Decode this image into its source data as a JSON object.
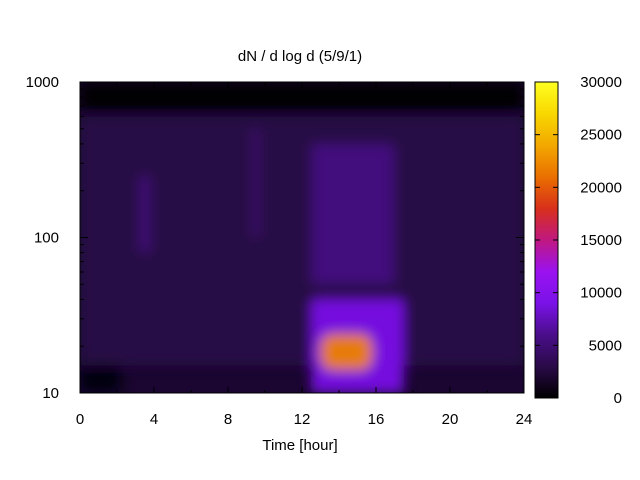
{
  "chart_data": {
    "type": "heatmap",
    "title": "dN / d log d (5/9/1)",
    "xlabel": "Time [hour]",
    "ylabel": "",
    "x_ticks": [
      "0",
      "4",
      "8",
      "12",
      "16",
      "20",
      "24"
    ],
    "x_tick_values": [
      0,
      4,
      8,
      12,
      16,
      20,
      24
    ],
    "y_ticks": [
      "10",
      "100",
      "1000"
    ],
    "y_tick_values": [
      10,
      100,
      1000
    ],
    "xlim": [
      0,
      24
    ],
    "ylim": [
      10,
      1000
    ],
    "y_scale": "log",
    "grid": false,
    "colorbar": {
      "range": [
        0,
        30000
      ],
      "ticks": [
        "0",
        "5000",
        "10000",
        "15000",
        "20000",
        "25000",
        "30000"
      ],
      "tick_values": [
        0,
        5000,
        10000,
        15000,
        20000,
        25000,
        30000
      ],
      "palette": [
        "#000000",
        "#2a0a48",
        "#4a0e8a",
        "#7a12e8",
        "#9a12f0",
        "#c01880",
        "#d8301a",
        "#ea7000",
        "#f2a800",
        "#f8d800",
        "#ffff20"
      ]
    },
    "features": [
      {
        "x": [
          0,
          24
        ],
        "y": [
          650,
          1000
        ],
        "value": 0
      },
      {
        "x": [
          0,
          2.2
        ],
        "y": [
          10,
          18
        ],
        "value": 300
      },
      {
        "x": [
          0,
          24
        ],
        "y": [
          15,
          600
        ],
        "value": 3000
      },
      {
        "x": [
          3.2,
          3.8
        ],
        "y": [
          80,
          250
        ],
        "value": 5200
      },
      {
        "x": [
          9.3,
          9.7
        ],
        "y": [
          100,
          500
        ],
        "value": 4800
      },
      {
        "x": [
          12.5,
          17.5
        ],
        "y": [
          10,
          40
        ],
        "value": 9000
      },
      {
        "x": [
          12.5,
          17
        ],
        "y": [
          50,
          400
        ],
        "value": 5500
      },
      {
        "x": [
          13,
          15.8
        ],
        "y": [
          14,
          24
        ],
        "value": 22000
      }
    ]
  }
}
